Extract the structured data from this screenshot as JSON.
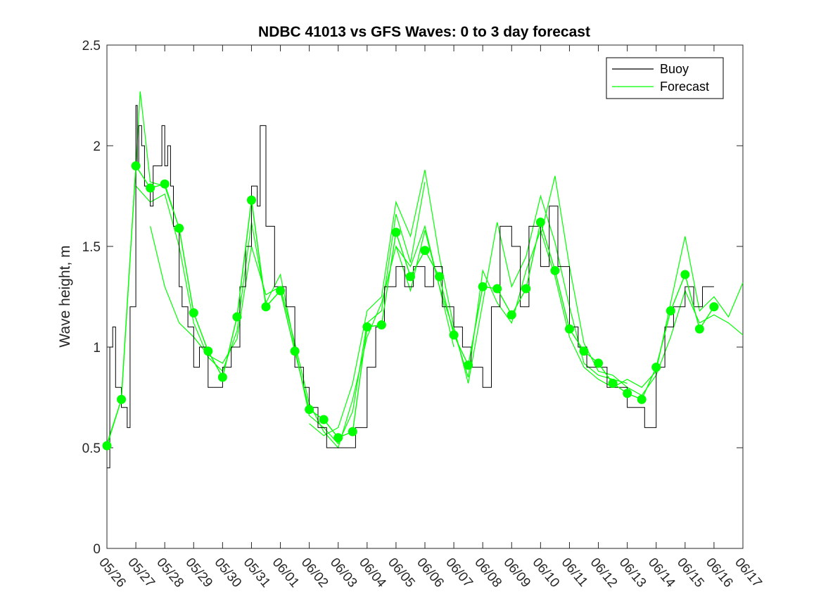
{
  "chart_data": {
    "type": "line",
    "title": "NDBC 41013 vs GFS Waves: 0 to 3 day forecast",
    "xlabel": "",
    "ylabel": "Wave height, m",
    "xlim": [
      0,
      22
    ],
    "ylim": [
      0,
      2.5
    ],
    "grid": false,
    "legend_position": "top-right",
    "x_ticks": [
      0,
      1,
      2,
      3,
      4,
      5,
      6,
      7,
      8,
      9,
      10,
      11,
      12,
      13,
      14,
      15,
      16,
      17,
      18,
      19,
      20,
      21,
      22
    ],
    "x_tick_labels": [
      "05/26",
      "05/27",
      "05/28",
      "05/29",
      "05/30",
      "05/31",
      "06/01",
      "06/02",
      "06/03",
      "06/04",
      "06/05",
      "06/06",
      "06/07",
      "06/08",
      "06/09",
      "06/10",
      "06/11",
      "06/12",
      "06/13",
      "06/14",
      "06/15",
      "06/16",
      "06/17"
    ],
    "y_ticks": [
      0,
      0.5,
      1,
      1.5,
      2,
      2.5
    ],
    "y_tick_labels": [
      "0",
      "0.5",
      "1",
      "1.5",
      "2",
      "2.5"
    ],
    "colors": {
      "buoy": "#000000",
      "forecast": "#00ff00"
    },
    "series": [
      {
        "name": "Buoy",
        "x": [
          0,
          0.1,
          0.2,
          0.3,
          0.5,
          0.7,
          0.8,
          1.0,
          1.05,
          1.1,
          1.2,
          1.3,
          1.5,
          1.6,
          1.8,
          1.9,
          2.0,
          2.1,
          2.2,
          2.3,
          2.5,
          2.6,
          2.8,
          3.0,
          3.2,
          3.5,
          3.8,
          4.0,
          4.3,
          4.6,
          4.8,
          5.0,
          5.2,
          5.3,
          5.5,
          5.8,
          6.0,
          6.2,
          6.5,
          6.8,
          7.0,
          7.3,
          7.6,
          8.0,
          8.3,
          8.6,
          9.0,
          9.3,
          9.6,
          10.0,
          10.3,
          10.6,
          11.0,
          11.3,
          11.6,
          12.0,
          12.3,
          12.6,
          13.0,
          13.3,
          13.6,
          14.0,
          14.3,
          14.6,
          15.0,
          15.3,
          15.6,
          16.0,
          16.3,
          16.6,
          17.0,
          17.3,
          17.6,
          18.0,
          18.3,
          18.6,
          19.0,
          19.3,
          19.6,
          20.0,
          20.3,
          20.6,
          21.0
        ],
        "y": [
          0.4,
          1.0,
          1.1,
          0.8,
          0.7,
          0.6,
          1.2,
          2.2,
          1.9,
          2.1,
          2.0,
          1.8,
          1.7,
          1.9,
          1.9,
          2.1,
          1.9,
          2.0,
          1.8,
          1.6,
          1.3,
          1.2,
          1.1,
          0.9,
          1.0,
          0.8,
          0.8,
          0.9,
          1.0,
          1.3,
          1.5,
          1.8,
          1.7,
          2.1,
          1.6,
          1.3,
          1.3,
          1.2,
          0.9,
          0.8,
          0.7,
          0.6,
          0.5,
          0.5,
          0.5,
          0.6,
          0.9,
          1.1,
          1.3,
          1.4,
          1.3,
          1.4,
          1.3,
          1.4,
          1.2,
          1.1,
          1.0,
          0.9,
          0.8,
          1.2,
          1.6,
          1.5,
          1.2,
          1.6,
          1.4,
          1.7,
          1.4,
          1.1,
          1.0,
          0.9,
          0.9,
          0.8,
          0.8,
          0.7,
          0.7,
          0.6,
          0.9,
          1.1,
          1.2,
          1.3,
          1.2,
          1.3,
          1.3
        ]
      },
      {
        "name": "Forecast",
        "x": [
          0,
          0.5,
          1.0,
          1.5,
          2.0,
          2.5,
          3.0,
          3.5,
          4.0,
          4.5,
          5.0,
          5.5,
          6.0,
          6.5,
          7.0,
          7.5,
          8.0,
          8.5,
          9.0,
          9.5,
          10.0,
          10.5,
          11.0,
          11.5,
          12.0,
          12.5,
          13.0,
          13.5,
          14.0,
          14.5,
          15.0,
          15.5,
          16.0,
          16.5,
          17.0,
          17.5,
          18.0,
          18.5,
          19.0,
          19.5,
          20.0,
          20.5,
          21.0
        ],
        "y": [
          0.51,
          0.74,
          1.9,
          1.79,
          1.81,
          1.59,
          1.17,
          0.98,
          0.85,
          1.15,
          1.73,
          1.2,
          1.28,
          0.98,
          0.69,
          0.64,
          0.55,
          0.58,
          1.1,
          1.11,
          1.57,
          1.35,
          1.48,
          1.35,
          1.06,
          0.91,
          1.3,
          1.29,
          1.16,
          1.29,
          1.62,
          1.38,
          1.09,
          0.98,
          0.92,
          0.82,
          0.77,
          0.74,
          0.9,
          1.18,
          1.36,
          1.09,
          1.2
        ]
      }
    ],
    "forecast_runs": [
      {
        "x": [
          0,
          0.5,
          1.0,
          1.15,
          1.5,
          2.0,
          2.5,
          3.0,
          3.5,
          4.0,
          4.5,
          5.0,
          5.5,
          6.0,
          6.5,
          7.0,
          7.5,
          8.0
        ],
        "y": [
          0.52,
          0.74,
          1.9,
          2.27,
          1.82,
          1.8,
          1.59,
          1.17,
          0.98,
          0.85,
          1.15,
          1.73,
          1.2,
          1.28,
          0.98,
          0.69,
          0.64,
          0.55
        ]
      },
      {
        "x": [
          1.0,
          1.5,
          2.0,
          2.5,
          3.0,
          3.5,
          4.0,
          4.5,
          5.0,
          5.5,
          6.0,
          6.5,
          7.0,
          7.5,
          8.0,
          8.5,
          9.0,
          9.5,
          10.0,
          10.5,
          11.0
        ],
        "y": [
          1.8,
          1.72,
          1.76,
          1.5,
          1.12,
          0.95,
          0.88,
          1.08,
          1.62,
          1.22,
          1.36,
          1.0,
          0.66,
          0.6,
          0.52,
          0.68,
          1.12,
          1.18,
          1.66,
          1.42,
          1.82
        ]
      },
      {
        "x": [
          1.5,
          2.0,
          2.5,
          3.0,
          3.5,
          4.0,
          4.5,
          5.0,
          5.5,
          6.0,
          6.5,
          7.0,
          7.5,
          8.0,
          8.5,
          9.0,
          9.5,
          10.0,
          10.5,
          11.0,
          11.5,
          12.0
        ],
        "y": [
          1.6,
          1.3,
          1.12,
          1.05,
          0.96,
          0.92,
          1.04,
          1.5,
          1.26,
          1.3,
          1.02,
          0.72,
          0.58,
          0.5,
          0.74,
          1.05,
          1.22,
          1.5,
          1.28,
          1.58,
          1.3,
          1.0
        ]
      },
      {
        "x": [
          7.0,
          7.5,
          8.0,
          8.5,
          9.0,
          9.5,
          10.0,
          10.5,
          11.0,
          11.5,
          12.0,
          12.5,
          13.0,
          13.5,
          14.0,
          14.5,
          15.0,
          15.5,
          16.0,
          16.5,
          17.0,
          17.5,
          18.0
        ],
        "y": [
          0.62,
          0.56,
          0.6,
          0.82,
          1.18,
          1.25,
          1.72,
          1.55,
          1.88,
          1.45,
          1.1,
          0.82,
          1.22,
          1.62,
          1.3,
          1.45,
          1.75,
          1.52,
          1.2,
          0.92,
          0.86,
          0.84,
          0.82
        ]
      },
      {
        "x": [
          10.0,
          10.5,
          11.0,
          11.5,
          12.0,
          12.5,
          13.0,
          13.5,
          14.0,
          14.5,
          15.0,
          15.5,
          16.0,
          16.5,
          17.0,
          17.5,
          18.0,
          18.5,
          19.0,
          19.5,
          20.0,
          20.5,
          21.0,
          21.5,
          22.0
        ],
        "y": [
          1.5,
          1.4,
          1.6,
          1.3,
          1.08,
          0.85,
          1.38,
          1.22,
          1.12,
          1.38,
          1.58,
          1.35,
          1.05,
          0.9,
          0.84,
          0.8,
          0.84,
          0.8,
          0.88,
          1.22,
          1.55,
          1.18,
          1.25,
          1.15,
          1.32
        ]
      },
      {
        "x": [
          15.0,
          15.5,
          16.0,
          16.5,
          17.0,
          17.5,
          18.0,
          18.5,
          19.0,
          19.5,
          20.0,
          20.5,
          21.0,
          21.5,
          22.0
        ],
        "y": [
          1.55,
          1.85,
          1.4,
          1.02,
          0.88,
          0.86,
          0.8,
          0.76,
          0.86,
          1.05,
          1.28,
          1.12,
          1.16,
          1.12,
          1.06
        ]
      }
    ]
  },
  "legend": {
    "buoy_label": "Buoy",
    "forecast_label": "Forecast"
  }
}
